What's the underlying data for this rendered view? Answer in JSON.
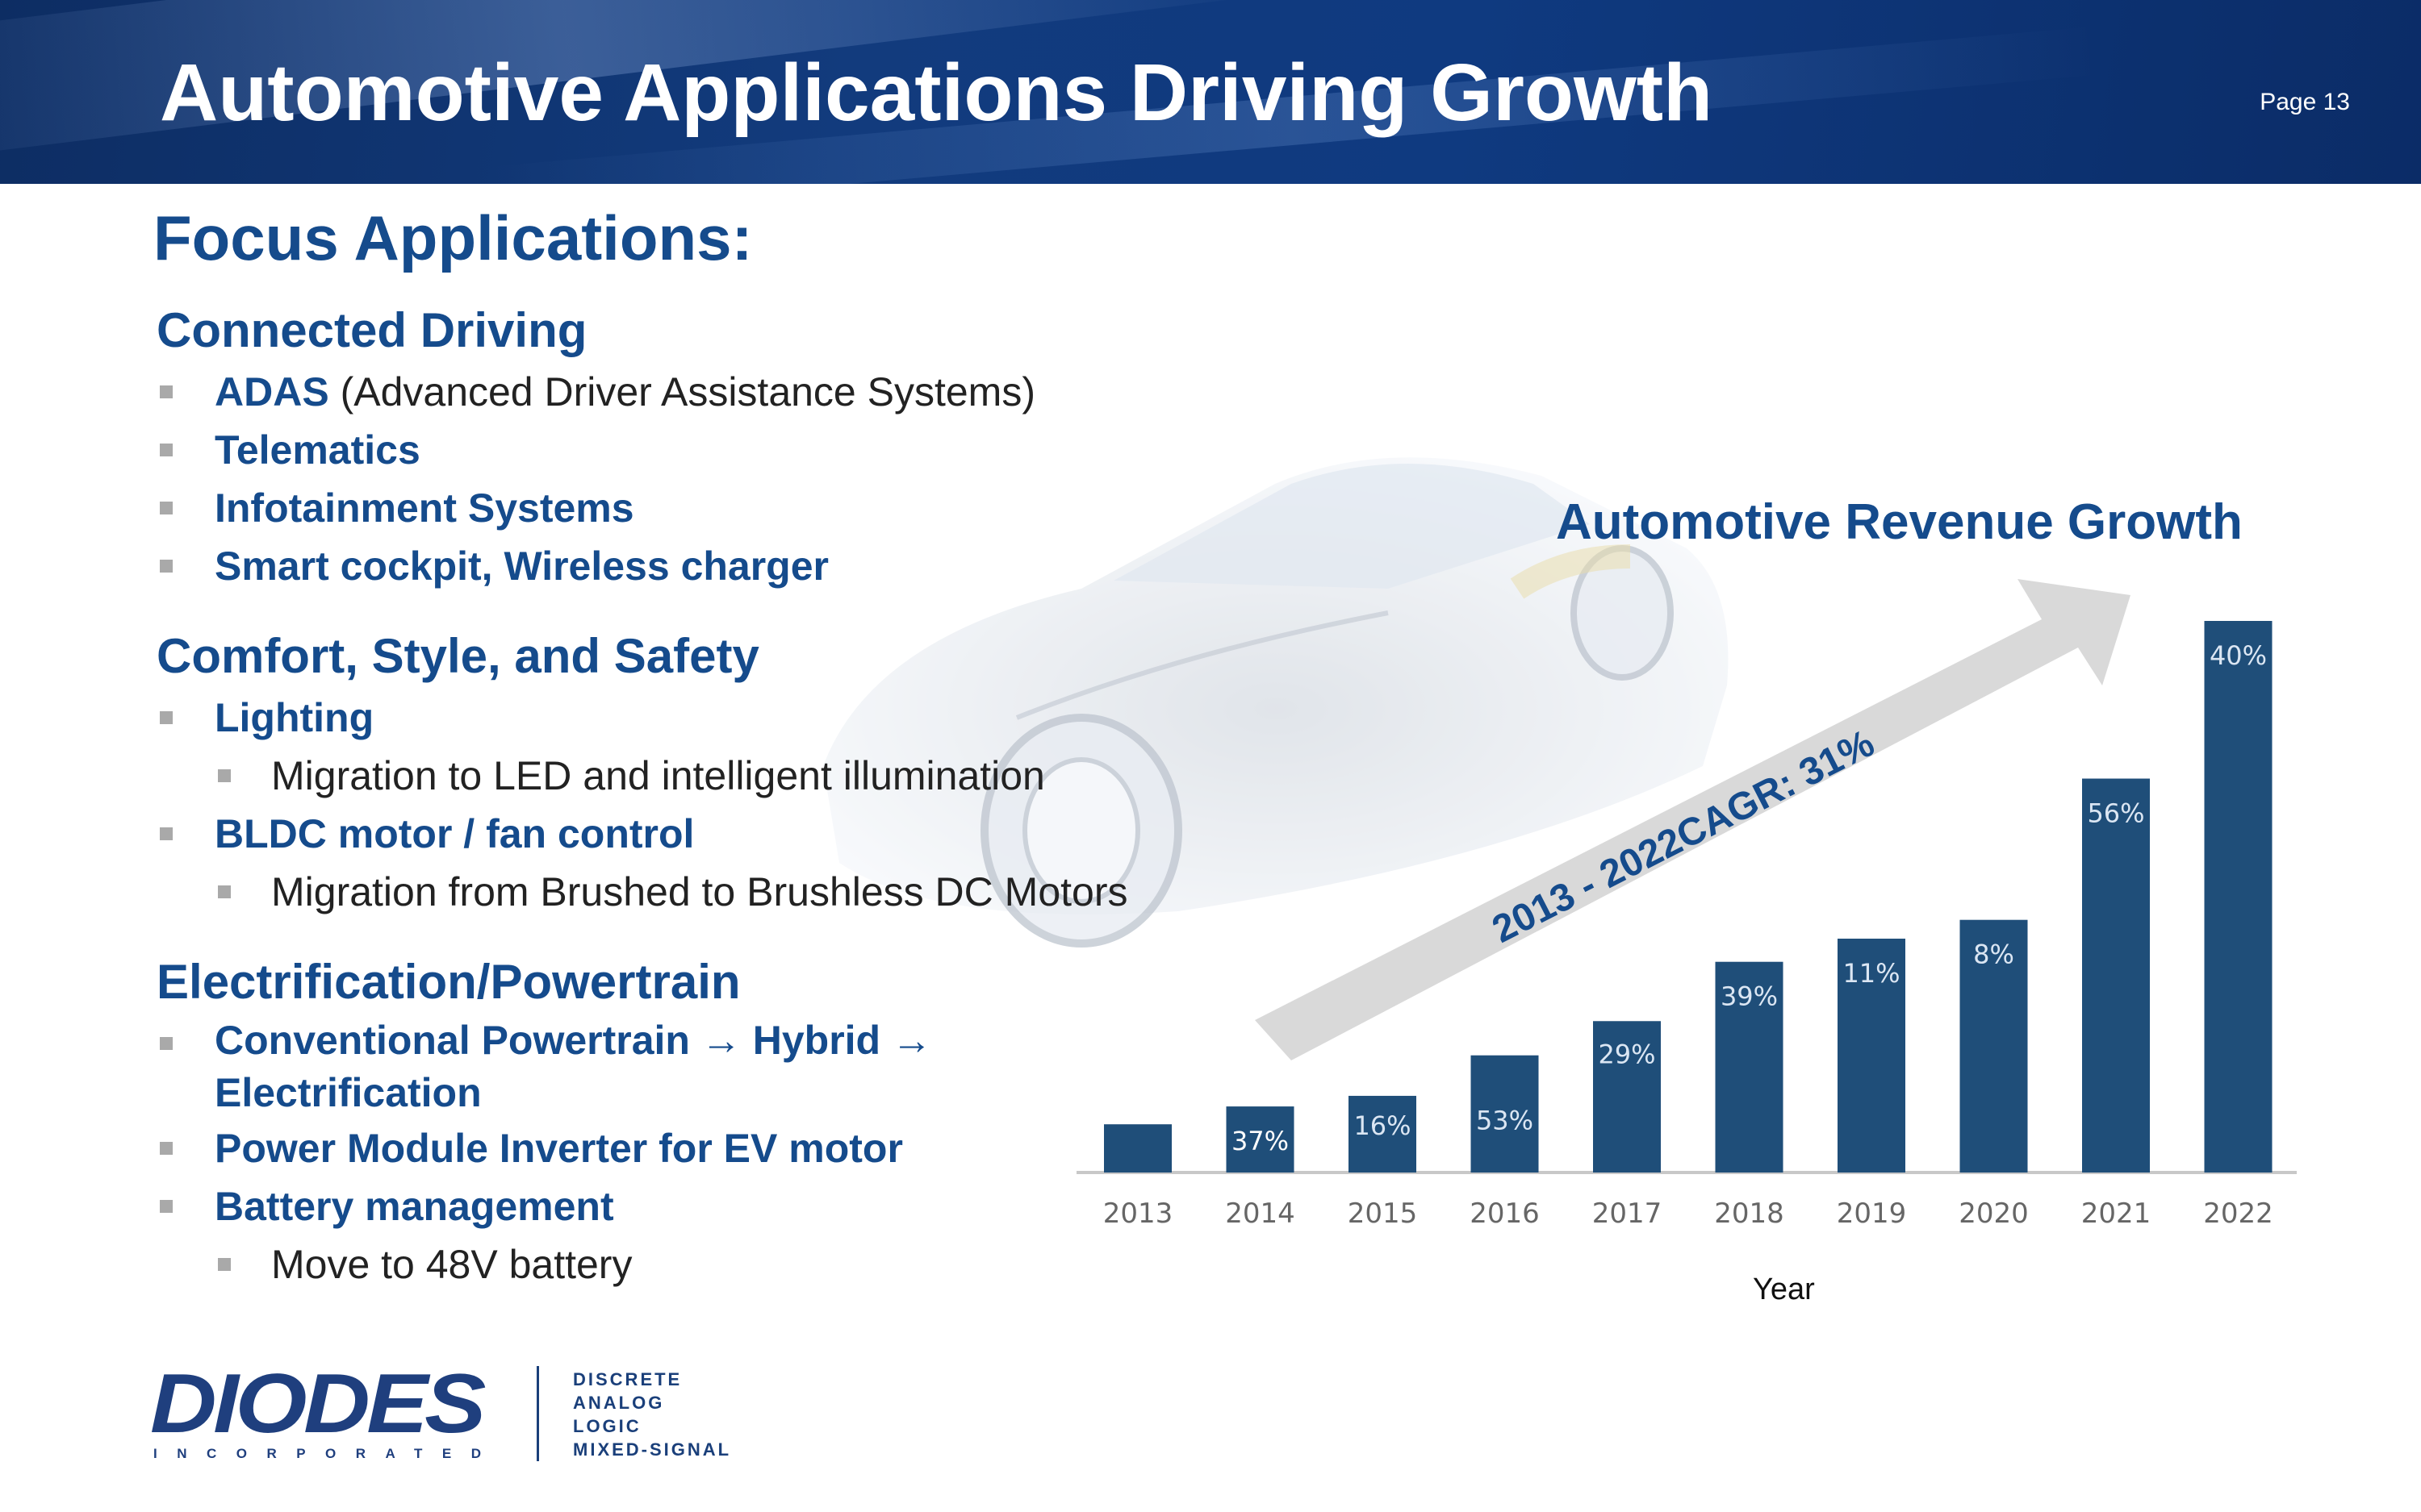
{
  "header": {
    "title": "Automotive Applications Driving Growth",
    "page": "Page 13"
  },
  "focus_title": "Focus Applications:",
  "sections": [
    {
      "heading": "Connected Driving",
      "items": [
        {
          "bold": "ADAS",
          "rest": " (Advanced Driver Assistance Systems)",
          "sub": []
        },
        {
          "bold": "Telematics",
          "rest": "",
          "sub": []
        },
        {
          "bold": "Infotainment Systems",
          "rest": "",
          "sub": []
        },
        {
          "bold": "Smart cockpit, Wireless charger",
          "rest": "",
          "sub": []
        }
      ]
    },
    {
      "heading": "Comfort, Style, and Safety",
      "items": [
        {
          "bold": "Lighting",
          "rest": "",
          "sub": [
            "Migration to LED and intelligent illumination"
          ]
        },
        {
          "bold": "BLDC motor / fan control",
          "rest": "",
          "sub": [
            "Migration from Brushed to Brushless DC Motors"
          ]
        }
      ]
    },
    {
      "heading": "Electrification/Powertrain",
      "items": [
        {
          "bold": "Conventional Powertrain → Hybrid →",
          "rest": "",
          "cont": "Electrification",
          "sub": []
        },
        {
          "bold": "Power Module Inverter for EV motor",
          "rest": "",
          "sub": []
        },
        {
          "bold": "Battery management",
          "rest": "",
          "sub": [
            "Move to 48V battery"
          ]
        }
      ]
    }
  ],
  "chart_data": {
    "type": "bar",
    "title": "Automotive Revenue Growth",
    "xlabel": "Year",
    "ylabel": "",
    "categories": [
      "2013",
      "2014",
      "2015",
      "2016",
      "2017",
      "2018",
      "2019",
      "2020",
      "2021",
      "2022"
    ],
    "values": [
      1.0,
      1.37,
      1.59,
      2.43,
      3.14,
      4.37,
      4.85,
      5.24,
      8.17,
      11.44
    ],
    "data_labels": [
      "",
      "37%",
      "16%",
      "53%",
      "29%",
      "39%",
      "11%",
      "8%",
      "56%",
      "40%"
    ],
    "annotation": "2013 - 2022CAGR: 31%",
    "ylim": [
      0,
      11.44
    ],
    "color": "#1f4e79"
  },
  "footer": {
    "logo": "DIODES",
    "logo_sub": "INCORPORATED",
    "tagline": [
      "DISCRETE",
      "ANALOG",
      "LOGIC",
      "MIXED-SIGNAL"
    ]
  }
}
